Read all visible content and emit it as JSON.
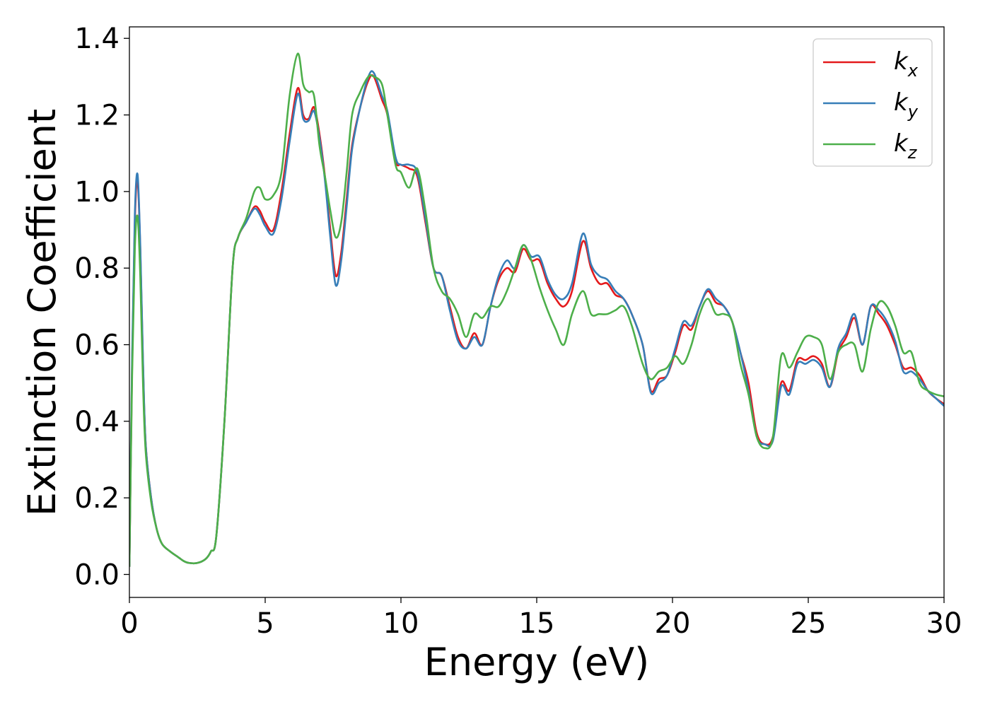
{
  "chart_data": {
    "type": "line",
    "title": "",
    "xlabel": "Energy (eV)",
    "ylabel": "Extinction Coefficient",
    "xlim": [
      0,
      30
    ],
    "ylim": [
      -0.06,
      1.43
    ],
    "xticks": [
      0,
      5,
      10,
      15,
      20,
      25,
      30
    ],
    "xtick_labels": [
      "0",
      "5",
      "10",
      "15",
      "20",
      "25",
      "30"
    ],
    "yticks": [
      0.0,
      0.2,
      0.4,
      0.6,
      0.8,
      1.0,
      1.2,
      1.4
    ],
    "ytick_labels": [
      "0.0",
      "0.2",
      "0.4",
      "0.6",
      "0.8",
      "1.0",
      "1.2",
      "1.4"
    ],
    "grid": false,
    "legend_position": "top-right",
    "series": [
      {
        "name": "k_x",
        "legend_base": "k",
        "legend_sub": "x",
        "color": "#e41a1c",
        "x": [
          0,
          0.1,
          0.2,
          0.3,
          0.4,
          0.5,
          0.6,
          0.8,
          1.0,
          1.2,
          1.5,
          1.8,
          2.0,
          2.2,
          2.5,
          2.8,
          3.0,
          3.2,
          3.5,
          3.8,
          4.0,
          4.3,
          4.6,
          4.8,
          5.0,
          5.3,
          5.6,
          5.9,
          6.2,
          6.4,
          6.6,
          6.8,
          7.0,
          7.2,
          7.4,
          7.6,
          7.8,
          8.0,
          8.2,
          8.5,
          8.8,
          9.0,
          9.3,
          9.5,
          9.8,
          10.0,
          10.3,
          10.6,
          10.9,
          11.2,
          11.5,
          11.8,
          12.1,
          12.4,
          12.7,
          13.0,
          13.3,
          13.6,
          13.9,
          14.2,
          14.5,
          14.8,
          15.1,
          15.4,
          15.7,
          16.0,
          16.3,
          16.7,
          17.0,
          17.3,
          17.6,
          17.9,
          18.2,
          18.5,
          18.9,
          19.2,
          19.5,
          19.8,
          20.1,
          20.4,
          20.7,
          21.0,
          21.3,
          21.6,
          21.9,
          22.2,
          22.5,
          22.8,
          23.1,
          23.4,
          23.7,
          24.0,
          24.3,
          24.6,
          24.9,
          25.2,
          25.5,
          25.8,
          26.1,
          26.4,
          26.7,
          27.0,
          27.3,
          27.6,
          27.9,
          28.2,
          28.5,
          28.8,
          29.1,
          29.4,
          29.7,
          30.0
        ],
        "y": [
          0.02,
          0.55,
          0.92,
          1.03,
          0.85,
          0.55,
          0.34,
          0.2,
          0.12,
          0.08,
          0.06,
          0.045,
          0.035,
          0.03,
          0.03,
          0.04,
          0.06,
          0.1,
          0.4,
          0.8,
          0.88,
          0.92,
          0.96,
          0.95,
          0.92,
          0.9,
          1.0,
          1.15,
          1.27,
          1.2,
          1.19,
          1.22,
          1.15,
          1.04,
          0.9,
          0.78,
          0.84,
          0.98,
          1.12,
          1.22,
          1.29,
          1.3,
          1.24,
          1.2,
          1.08,
          1.07,
          1.06,
          1.04,
          0.92,
          0.8,
          0.78,
          0.7,
          0.62,
          0.59,
          0.63,
          0.6,
          0.7,
          0.77,
          0.8,
          0.79,
          0.85,
          0.82,
          0.82,
          0.76,
          0.72,
          0.7,
          0.74,
          0.87,
          0.8,
          0.76,
          0.76,
          0.73,
          0.72,
          0.68,
          0.6,
          0.48,
          0.51,
          0.52,
          0.58,
          0.65,
          0.64,
          0.7,
          0.74,
          0.71,
          0.7,
          0.66,
          0.58,
          0.5,
          0.37,
          0.34,
          0.36,
          0.5,
          0.48,
          0.56,
          0.56,
          0.57,
          0.55,
          0.49,
          0.58,
          0.62,
          0.67,
          0.6,
          0.7,
          0.68,
          0.65,
          0.6,
          0.54,
          0.54,
          0.52,
          0.48,
          0.46,
          0.445
        ]
      },
      {
        "name": "k_y",
        "legend_base": "k",
        "legend_sub": "y",
        "color": "#377eb8",
        "x": [
          0,
          0.1,
          0.2,
          0.3,
          0.4,
          0.5,
          0.6,
          0.8,
          1.0,
          1.2,
          1.5,
          1.8,
          2.0,
          2.2,
          2.5,
          2.8,
          3.0,
          3.2,
          3.5,
          3.8,
          4.0,
          4.3,
          4.6,
          4.8,
          5.0,
          5.3,
          5.6,
          5.9,
          6.2,
          6.4,
          6.6,
          6.8,
          7.0,
          7.2,
          7.4,
          7.6,
          7.8,
          8.0,
          8.2,
          8.5,
          8.8,
          9.0,
          9.3,
          9.5,
          9.8,
          10.0,
          10.3,
          10.6,
          10.9,
          11.2,
          11.5,
          11.8,
          12.1,
          12.4,
          12.7,
          13.0,
          13.3,
          13.6,
          13.9,
          14.2,
          14.5,
          14.8,
          15.1,
          15.4,
          15.7,
          16.0,
          16.3,
          16.7,
          17.0,
          17.3,
          17.6,
          17.9,
          18.2,
          18.5,
          18.9,
          19.2,
          19.5,
          19.8,
          20.1,
          20.4,
          20.7,
          21.0,
          21.3,
          21.6,
          21.9,
          22.2,
          22.5,
          22.8,
          23.1,
          23.4,
          23.7,
          24.0,
          24.3,
          24.6,
          24.9,
          25.2,
          25.5,
          25.8,
          26.1,
          26.4,
          26.7,
          27.0,
          27.3,
          27.6,
          27.9,
          28.2,
          28.5,
          28.8,
          29.1,
          29.4,
          29.7,
          30.0
        ],
        "y": [
          0.02,
          0.57,
          0.94,
          1.045,
          0.86,
          0.56,
          0.34,
          0.2,
          0.12,
          0.08,
          0.06,
          0.045,
          0.035,
          0.03,
          0.03,
          0.04,
          0.06,
          0.1,
          0.4,
          0.8,
          0.88,
          0.92,
          0.955,
          0.94,
          0.91,
          0.89,
          0.98,
          1.13,
          1.255,
          1.19,
          1.185,
          1.21,
          1.14,
          1.03,
          0.88,
          0.755,
          0.82,
          0.96,
          1.11,
          1.22,
          1.3,
          1.31,
          1.25,
          1.21,
          1.09,
          1.07,
          1.07,
          1.05,
          0.93,
          0.8,
          0.78,
          0.69,
          0.61,
          0.59,
          0.62,
          0.6,
          0.7,
          0.78,
          0.82,
          0.8,
          0.86,
          0.83,
          0.83,
          0.77,
          0.73,
          0.72,
          0.76,
          0.89,
          0.81,
          0.78,
          0.77,
          0.74,
          0.72,
          0.68,
          0.6,
          0.475,
          0.5,
          0.52,
          0.59,
          0.66,
          0.65,
          0.7,
          0.745,
          0.72,
          0.7,
          0.66,
          0.58,
          0.48,
          0.36,
          0.34,
          0.35,
          0.49,
          0.47,
          0.55,
          0.55,
          0.56,
          0.54,
          0.49,
          0.59,
          0.63,
          0.68,
          0.6,
          0.7,
          0.69,
          0.66,
          0.61,
          0.53,
          0.53,
          0.51,
          0.48,
          0.46,
          0.44
        ]
      },
      {
        "name": "k_z",
        "legend_base": "k",
        "legend_sub": "z",
        "color": "#4daf4a",
        "x": [
          0,
          0.1,
          0.2,
          0.3,
          0.4,
          0.5,
          0.6,
          0.8,
          1.0,
          1.2,
          1.5,
          1.8,
          2.0,
          2.2,
          2.5,
          2.8,
          3.0,
          3.2,
          3.5,
          3.8,
          4.0,
          4.3,
          4.6,
          4.8,
          5.0,
          5.3,
          5.6,
          5.9,
          6.2,
          6.4,
          6.6,
          6.8,
          7.0,
          7.2,
          7.4,
          7.6,
          7.8,
          8.0,
          8.2,
          8.5,
          8.8,
          9.0,
          9.3,
          9.5,
          9.8,
          10.0,
          10.3,
          10.6,
          10.9,
          11.2,
          11.5,
          11.8,
          12.1,
          12.4,
          12.7,
          13.0,
          13.3,
          13.6,
          13.9,
          14.2,
          14.5,
          14.8,
          15.1,
          15.4,
          15.7,
          16.0,
          16.3,
          16.7,
          17.0,
          17.3,
          17.6,
          17.9,
          18.2,
          18.5,
          18.9,
          19.2,
          19.5,
          19.8,
          20.1,
          20.4,
          20.7,
          21.0,
          21.3,
          21.6,
          21.9,
          22.2,
          22.5,
          22.8,
          23.1,
          23.4,
          23.7,
          24.0,
          24.3,
          24.6,
          24.9,
          25.2,
          25.5,
          25.8,
          26.1,
          26.4,
          26.7,
          27.0,
          27.3,
          27.6,
          27.9,
          28.2,
          28.5,
          28.8,
          29.1,
          29.4,
          29.7,
          30.0
        ],
        "y": [
          0.02,
          0.52,
          0.85,
          0.935,
          0.78,
          0.5,
          0.32,
          0.19,
          0.12,
          0.08,
          0.06,
          0.045,
          0.035,
          0.03,
          0.03,
          0.04,
          0.06,
          0.1,
          0.4,
          0.8,
          0.88,
          0.93,
          1.0,
          1.01,
          0.98,
          0.99,
          1.05,
          1.25,
          1.36,
          1.28,
          1.26,
          1.25,
          1.12,
          1.04,
          0.95,
          0.88,
          0.92,
          1.05,
          1.2,
          1.26,
          1.3,
          1.3,
          1.28,
          1.2,
          1.07,
          1.05,
          1.01,
          1.06,
          0.95,
          0.8,
          0.74,
          0.72,
          0.68,
          0.62,
          0.68,
          0.67,
          0.7,
          0.7,
          0.74,
          0.8,
          0.86,
          0.82,
          0.75,
          0.69,
          0.64,
          0.6,
          0.68,
          0.74,
          0.68,
          0.68,
          0.68,
          0.69,
          0.7,
          0.65,
          0.55,
          0.51,
          0.53,
          0.54,
          0.57,
          0.55,
          0.6,
          0.68,
          0.72,
          0.68,
          0.68,
          0.66,
          0.55,
          0.47,
          0.36,
          0.33,
          0.36,
          0.57,
          0.54,
          0.58,
          0.62,
          0.62,
          0.6,
          0.51,
          0.58,
          0.6,
          0.6,
          0.53,
          0.64,
          0.71,
          0.7,
          0.65,
          0.58,
          0.58,
          0.5,
          0.48,
          0.47,
          0.465
        ]
      }
    ]
  }
}
